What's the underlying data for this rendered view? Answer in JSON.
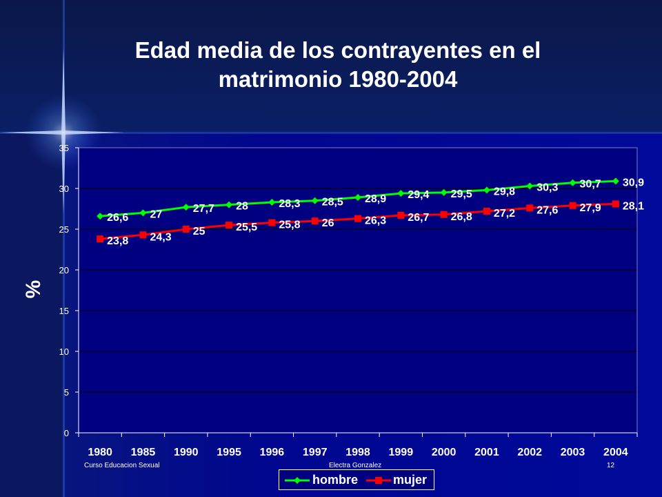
{
  "colors": {
    "background": "#00007a",
    "plot_area": "#000080",
    "hombre": "#00ff00",
    "mujer": "#ff0000",
    "text": "#ffffff"
  },
  "title": {
    "line1": "Edad media de los contrayentes en el",
    "line2": "matrimonio 1980-2004"
  },
  "footer": {
    "left": "Curso Educacion Sexual",
    "center": "Electra Gonzalez",
    "page": "12"
  },
  "chart_data": {
    "type": "line",
    "title": "Edad media de los contrayentes en el matrimonio 1980-2004",
    "xlabel": "",
    "ylabel": "%",
    "ylim": [
      0,
      35
    ],
    "yticks": [
      0,
      5,
      10,
      15,
      20,
      25,
      30,
      35
    ],
    "grid": true,
    "legend_position": "bottom",
    "categories": [
      "1980",
      "1985",
      "1990",
      "1995",
      "1996",
      "1997",
      "1998",
      "1999",
      "2000",
      "2001",
      "2002",
      "2003",
      "2004"
    ],
    "series": [
      {
        "name": "hombre",
        "marker": "diamond",
        "values": [
          26.6,
          27,
          27.7,
          28,
          28.3,
          28.5,
          28.9,
          29.4,
          29.5,
          29.8,
          30.3,
          30.7,
          30.9
        ],
        "labels": [
          "26,6",
          "27",
          "27,7",
          "28",
          "28,3",
          "28,5",
          "28,9",
          "29,4",
          "29,5",
          "29,8",
          "30,3",
          "30,7",
          "30,9"
        ]
      },
      {
        "name": "mujer",
        "marker": "square",
        "values": [
          23.8,
          24.3,
          25,
          25.5,
          25.8,
          26,
          26.3,
          26.7,
          26.8,
          27.2,
          27.6,
          27.9,
          28.1
        ],
        "labels": [
          "23,8",
          "24,3",
          "25",
          "25,5",
          "25,8",
          "26",
          "26,3",
          "26,7",
          "26,8",
          "27,2",
          "27,6",
          "27,9",
          "28,1"
        ]
      }
    ]
  }
}
